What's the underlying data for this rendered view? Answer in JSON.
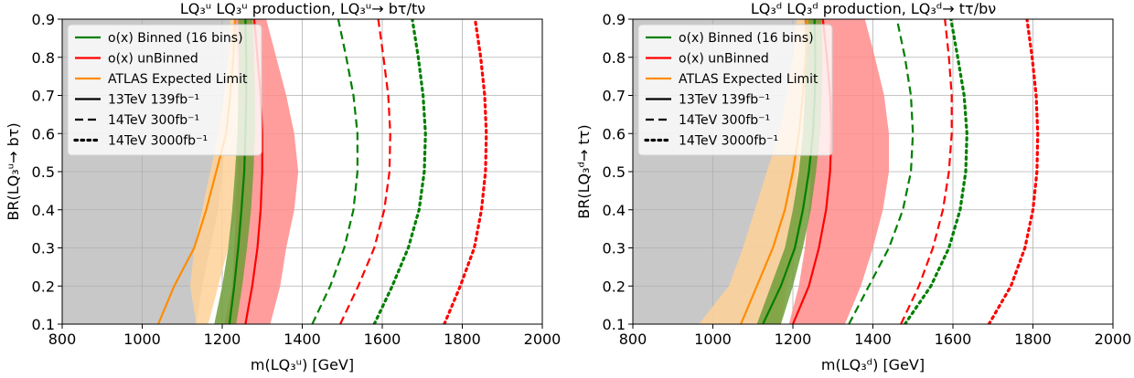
{
  "chart_data": [
    {
      "type": "line",
      "title": "LQ₃ᵘ LQ₃ᵘ production, LQ₃ᵘ→ bτ/tν",
      "xlabel": "m(LQ₃ᵘ) [GeV]",
      "ylabel": "BR(LQ₃ᵘ→ bτ)",
      "xlim": [
        800,
        2000
      ],
      "ylim": [
        0.1,
        0.9
      ],
      "xticks": [
        "800",
        "1000",
        "1200",
        "1400",
        "1600",
        "1800",
        "2000"
      ],
      "yticks": [
        "0.1",
        "0.2",
        "0.3",
        "0.4",
        "0.5",
        "0.6",
        "0.7",
        "0.8",
        "0.9"
      ],
      "grid": true,
      "legend_position": "top-left",
      "y": [
        0.1,
        0.2,
        0.3,
        0.4,
        0.5,
        0.6,
        0.7,
        0.8,
        0.9
      ],
      "excluded_region": {
        "color": "#c8c8c8",
        "boundary_x": [
          1135,
          1150,
          1170,
          1190,
          1200,
          1210,
          1220,
          1225,
          1230
        ]
      },
      "bands": [
        {
          "name": "ATLAS Expected Limit",
          "color": "#ffd199",
          "lower": [
            1135,
            1120,
            1130,
            1150,
            1170,
            1190,
            1205,
            1215,
            1220
          ],
          "upper": [
            1165,
            1190,
            1215,
            1235,
            1250,
            1260,
            1265,
            1268,
            1270
          ]
        },
        {
          "name": "o(x) unBinned 13TeV",
          "color": "#ff8c8c",
          "lower": [
            1205,
            1225,
            1230,
            1235,
            1238,
            1240,
            1240,
            1238,
            1232
          ],
          "upper": [
            1320,
            1345,
            1360,
            1380,
            1390,
            1380,
            1360,
            1335,
            1310
          ]
        },
        {
          "name": "o(x) Binned 13TeV",
          "color": "#6f9e38",
          "lower": [
            1180,
            1200,
            1215,
            1225,
            1232,
            1238,
            1240,
            1242,
            1240
          ],
          "upper": [
            1235,
            1250,
            1262,
            1272,
            1278,
            1282,
            1282,
            1280,
            1276
          ]
        }
      ],
      "series": [
        {
          "name": "ATLAS Expected Limit",
          "color": "#ff8c00",
          "style": "solid",
          "x": [
            1040,
            1080,
            1130,
            1160,
            1185,
            1210,
            1220,
            1228,
            1232
          ]
        },
        {
          "name": "o(x) Binned (16 bins)",
          "color": "#007f00",
          "style": "solid",
          "x": [
            1218,
            1230,
            1240,
            1248,
            1255,
            1258,
            1260,
            1260,
            1258
          ]
        },
        {
          "name": "o(x) unBinned",
          "color": "#ff0000",
          "style": "solid",
          "x": [
            1258,
            1275,
            1288,
            1296,
            1300,
            1300,
            1296,
            1288,
            1280
          ]
        },
        {
          "name": "o(x) Binned (16 bins)",
          "color": "#007f00",
          "style": "dashed",
          "x": [
            1425,
            1470,
            1505,
            1528,
            1538,
            1538,
            1528,
            1510,
            1490
          ]
        },
        {
          "name": "o(x) unBinned",
          "color": "#ff0000",
          "style": "dashed",
          "x": [
            1495,
            1540,
            1580,
            1605,
            1618,
            1620,
            1615,
            1603,
            1590
          ]
        },
        {
          "name": "o(x) Binned (16 bins)",
          "color": "#007f00",
          "style": "dotted",
          "x": [
            1580,
            1625,
            1665,
            1692,
            1705,
            1708,
            1702,
            1690,
            1675
          ]
        },
        {
          "name": "o(x) unBinned",
          "color": "#ff0000",
          "style": "dotted",
          "x": [
            1755,
            1795,
            1830,
            1848,
            1858,
            1860,
            1856,
            1846,
            1832
          ]
        }
      ],
      "legend": [
        {
          "label": "o(x) Binned (16 bins)",
          "color": "#007f00",
          "style": "solid"
        },
        {
          "label": "o(x) unBinned",
          "color": "#ff0000",
          "style": "solid"
        },
        {
          "label": "ATLAS Expected Limit",
          "color": "#ff8c00",
          "style": "solid"
        },
        {
          "label": "13TeV 139fb⁻¹",
          "color": "#000000",
          "style": "solid"
        },
        {
          "label": "14TeV 300fb⁻¹",
          "color": "#000000",
          "style": "dashed"
        },
        {
          "label": "14TeV 3000fb⁻¹",
          "color": "#000000",
          "style": "dotted"
        }
      ]
    },
    {
      "type": "line",
      "title": "LQ₃ᵈ LQ₃ᵈ production, LQ₃ᵈ→ tτ/bν",
      "xlabel": "m(LQ₃ᵈ) [GeV]",
      "ylabel": "BR(LQ₃ᵈ→ tτ)",
      "xlim": [
        800,
        2000
      ],
      "ylim": [
        0.1,
        0.9
      ],
      "xticks": [
        "800",
        "1000",
        "1200",
        "1400",
        "1600",
        "1800",
        "2000"
      ],
      "yticks": [
        "0.1",
        "0.2",
        "0.3",
        "0.4",
        "0.5",
        "0.6",
        "0.7",
        "0.8",
        "0.9"
      ],
      "grid": true,
      "legend_position": "top-left",
      "y": [
        0.1,
        0.2,
        0.3,
        0.4,
        0.5,
        0.6,
        0.7,
        0.8,
        0.9
      ],
      "excluded_region": {
        "color": "#c8c8c8",
        "boundary_x": [
          1160,
          1170,
          1185,
          1200,
          1210,
          1218,
          1225,
          1228,
          1230
        ]
      },
      "bands": [
        {
          "name": "ATLAS Expected Limit",
          "color": "#ffd199",
          "lower": [
            965,
            1040,
            1075,
            1105,
            1135,
            1165,
            1185,
            1200,
            1210
          ],
          "upper": [
            1170,
            1185,
            1210,
            1230,
            1245,
            1255,
            1262,
            1266,
            1268
          ]
        },
        {
          "name": "o(x) unBinned 13TeV",
          "color": "#ff8c8c",
          "lower": [
            1190,
            1215,
            1230,
            1240,
            1245,
            1245,
            1242,
            1236,
            1228
          ],
          "upper": [
            1330,
            1370,
            1400,
            1425,
            1440,
            1440,
            1428,
            1405,
            1380
          ]
        },
        {
          "name": "o(x) Binned 13TeV",
          "color": "#6f9e38",
          "lower": [
            1110,
            1145,
            1180,
            1200,
            1215,
            1225,
            1230,
            1232,
            1230
          ],
          "upper": [
            1170,
            1200,
            1225,
            1245,
            1258,
            1268,
            1272,
            1274,
            1272
          ]
        }
      ],
      "series": [
        {
          "name": "ATLAS Expected Limit",
          "color": "#ff8c00",
          "style": "solid",
          "x": [
            1070,
            1110,
            1150,
            1180,
            1200,
            1215,
            1225,
            1232,
            1236
          ]
        },
        {
          "name": "o(x) Binned (16 bins)",
          "color": "#007f00",
          "style": "solid",
          "x": [
            1125,
            1170,
            1205,
            1225,
            1240,
            1250,
            1255,
            1256,
            1254
          ]
        },
        {
          "name": "o(x) unBinned",
          "color": "#ff0000",
          "style": "solid",
          "x": [
            1200,
            1240,
            1265,
            1283,
            1293,
            1296,
            1293,
            1285,
            1275
          ]
        },
        {
          "name": "o(x) Binned (16 bins)",
          "color": "#007f00",
          "style": "dashed",
          "x": [
            1340,
            1390,
            1440,
            1475,
            1495,
            1500,
            1495,
            1480,
            1460
          ]
        },
        {
          "name": "o(x) unBinned",
          "color": "#ff0000",
          "style": "dashed",
          "x": [
            1470,
            1515,
            1550,
            1575,
            1590,
            1597,
            1597,
            1590,
            1580
          ]
        },
        {
          "name": "o(x) Binned (16 bins)",
          "color": "#007f00",
          "style": "dotted",
          "x": [
            1480,
            1545,
            1590,
            1618,
            1632,
            1635,
            1628,
            1612,
            1595
          ]
        },
        {
          "name": "o(x) unBinned",
          "color": "#ff0000",
          "style": "dotted",
          "x": [
            1690,
            1745,
            1780,
            1800,
            1810,
            1812,
            1808,
            1798,
            1785
          ]
        }
      ],
      "legend": [
        {
          "label": "o(x) Binned (16 bins)",
          "color": "#007f00",
          "style": "solid"
        },
        {
          "label": "o(x) unBinned",
          "color": "#ff0000",
          "style": "solid"
        },
        {
          "label": "ATLAS Expected Limit",
          "color": "#ff8c00",
          "style": "solid"
        },
        {
          "label": "13TeV 139fb⁻¹",
          "color": "#000000",
          "style": "solid"
        },
        {
          "label": "14TeV 300fb⁻¹",
          "color": "#000000",
          "style": "dashed"
        },
        {
          "label": "14TeV 3000fb⁻¹",
          "color": "#000000",
          "style": "dotted"
        }
      ]
    }
  ]
}
